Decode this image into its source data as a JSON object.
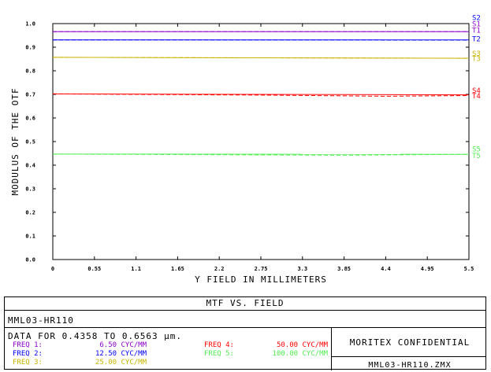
{
  "chart_data": {
    "type": "line",
    "title": "MTF VS. FIELD",
    "xlabel": "Y FIELD IN MILLIMETERS",
    "ylabel": "MODULUS OF THE OTF",
    "xlim": [
      0,
      5.5
    ],
    "ylim": [
      0,
      1.0
    ],
    "x_ticks": [
      "0",
      "0.55",
      "1.1",
      "1.65",
      "2.2",
      "2.75",
      "3.3",
      "3.85",
      "4.4",
      "4.95",
      "5.5"
    ],
    "y_ticks": [
      "0.0",
      "0.1",
      "0.2",
      "0.3",
      "0.4",
      "0.5",
      "0.6",
      "0.7",
      "0.8",
      "0.9",
      "1.0"
    ],
    "grid": false,
    "series": [
      {
        "name": "T1",
        "color": "#8b00cc",
        "dash": "solid",
        "x": [
          0,
          5.5
        ],
        "y": [
          0.966,
          0.966
        ]
      },
      {
        "name": "S1",
        "color": "#8b00cc",
        "dash": "dashed",
        "x": [
          0,
          5.5
        ],
        "y": [
          0.966,
          0.966
        ]
      },
      {
        "name": "T2",
        "color": "#0000ff",
        "dash": "solid",
        "x": [
          0,
          5.5
        ],
        "y": [
          0.931,
          0.931
        ]
      },
      {
        "name": "S2",
        "color": "#0000ff",
        "dash": "dashed",
        "x": [
          0,
          5.5
        ],
        "y": [
          0.931,
          0.93
        ]
      },
      {
        "name": "T3",
        "color": "#c8b400",
        "dash": "solid",
        "x": [
          0,
          5.5
        ],
        "y": [
          0.857,
          0.853
        ]
      },
      {
        "name": "S3",
        "color": "#c8b400",
        "dash": "dashed",
        "x": [
          0,
          2.75,
          5.5
        ],
        "y": [
          0.857,
          0.855,
          0.853
        ]
      },
      {
        "name": "T4",
        "color": "#ff0000",
        "dash": "solid",
        "x": [
          0,
          5.5
        ],
        "y": [
          0.702,
          0.698
        ]
      },
      {
        "name": "S4",
        "color": "#ff0000",
        "dash": "dashed",
        "x": [
          0,
          2.75,
          4.4,
          5.5
        ],
        "y": [
          0.702,
          0.697,
          0.692,
          0.695
        ]
      },
      {
        "name": "T5",
        "color": "#55ee55",
        "dash": "solid",
        "x": [
          0,
          5.5
        ],
        "y": [
          0.447,
          0.446
        ]
      },
      {
        "name": "S5",
        "color": "#55ee55",
        "dash": "dashed",
        "x": [
          0,
          3.85,
          5.5
        ],
        "y": [
          0.447,
          0.442,
          0.446
        ]
      }
    ],
    "end_labels": [
      {
        "text": "S2",
        "color": "#0000ff",
        "y": 1.025
      },
      {
        "text": "S1",
        "color": "#8b00cc",
        "y": 0.998
      },
      {
        "text": "T1",
        "color": "#8b00cc",
        "y": 0.971
      },
      {
        "text": "T2",
        "color": "#0000ff",
        "y": 0.935
      },
      {
        "text": "S3",
        "color": "#c8b400",
        "y": 0.874
      },
      {
        "text": "T3",
        "color": "#c8b400",
        "y": 0.852
      },
      {
        "text": "S4",
        "color": "#ff0000",
        "y": 0.717
      },
      {
        "text": "T4",
        "color": "#ff0000",
        "y": 0.693
      },
      {
        "text": "S5",
        "color": "#55ee55",
        "y": 0.468
      },
      {
        "text": "T5",
        "color": "#55ee55",
        "y": 0.44
      }
    ]
  },
  "info": {
    "plot_title": "MTF VS. FIELD",
    "lens_name": "MML03-HR110",
    "wavelength_line": "DATA FOR 0.4358 TO 0.6563 µm.",
    "freqs": [
      {
        "label": "FREQ 1:",
        "value": "6.50 CYC/MM",
        "color": "#8b00cc"
      },
      {
        "label": "FREQ 2:",
        "value": "12.50 CYC/MM",
        "color": "#0000ff"
      },
      {
        "label": "FREQ 3:",
        "value": "25.00 CYC/MM",
        "color": "#c8b400"
      },
      {
        "label": "FREQ 4:",
        "value": "50.00 CYC/MM",
        "color": "#ff0000"
      },
      {
        "label": "FREQ 5:",
        "value": "100.00 CYC/MM",
        "color": "#55ee55"
      }
    ],
    "confidential": "MORITEX CONFIDENTIAL",
    "filename": "MML03-HR110.ZMX"
  }
}
